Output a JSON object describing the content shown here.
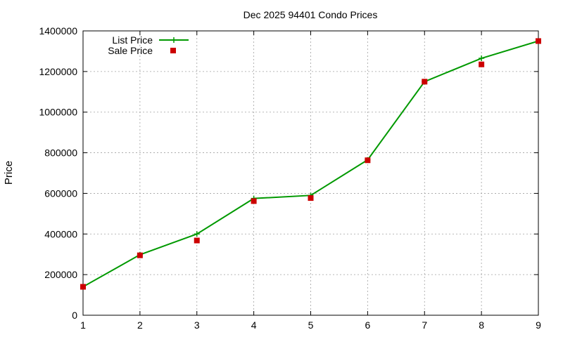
{
  "chart_data": {
    "type": "line",
    "title": "Dec 2025 94401 Condo Prices",
    "xlabel": "",
    "ylabel": "Price",
    "xlim": [
      1,
      9
    ],
    "ylim": [
      0,
      1400000
    ],
    "x_ticks": [
      "1",
      "2",
      "3",
      "4",
      "5",
      "6",
      "7",
      "8",
      "9"
    ],
    "y_ticks": [
      "0",
      "200000",
      "400000",
      "600000",
      "800000",
      "1000000",
      "1200000",
      "1400000"
    ],
    "grid": true,
    "legend_position": "top-left",
    "x": [
      1,
      2,
      3,
      4,
      5,
      6,
      7,
      8,
      9
    ],
    "series": [
      {
        "name": "List Price",
        "style": "line+cross",
        "color": "#009900",
        "values": [
          140000,
          298000,
          400000,
          575000,
          590000,
          765000,
          1150000,
          1265000,
          1350000
        ]
      },
      {
        "name": "Sale Price",
        "style": "square-points",
        "color": "#cc0000",
        "values": [
          140000,
          295000,
          368000,
          562000,
          577000,
          763000,
          1150000,
          1235000,
          1350000
        ]
      }
    ]
  }
}
